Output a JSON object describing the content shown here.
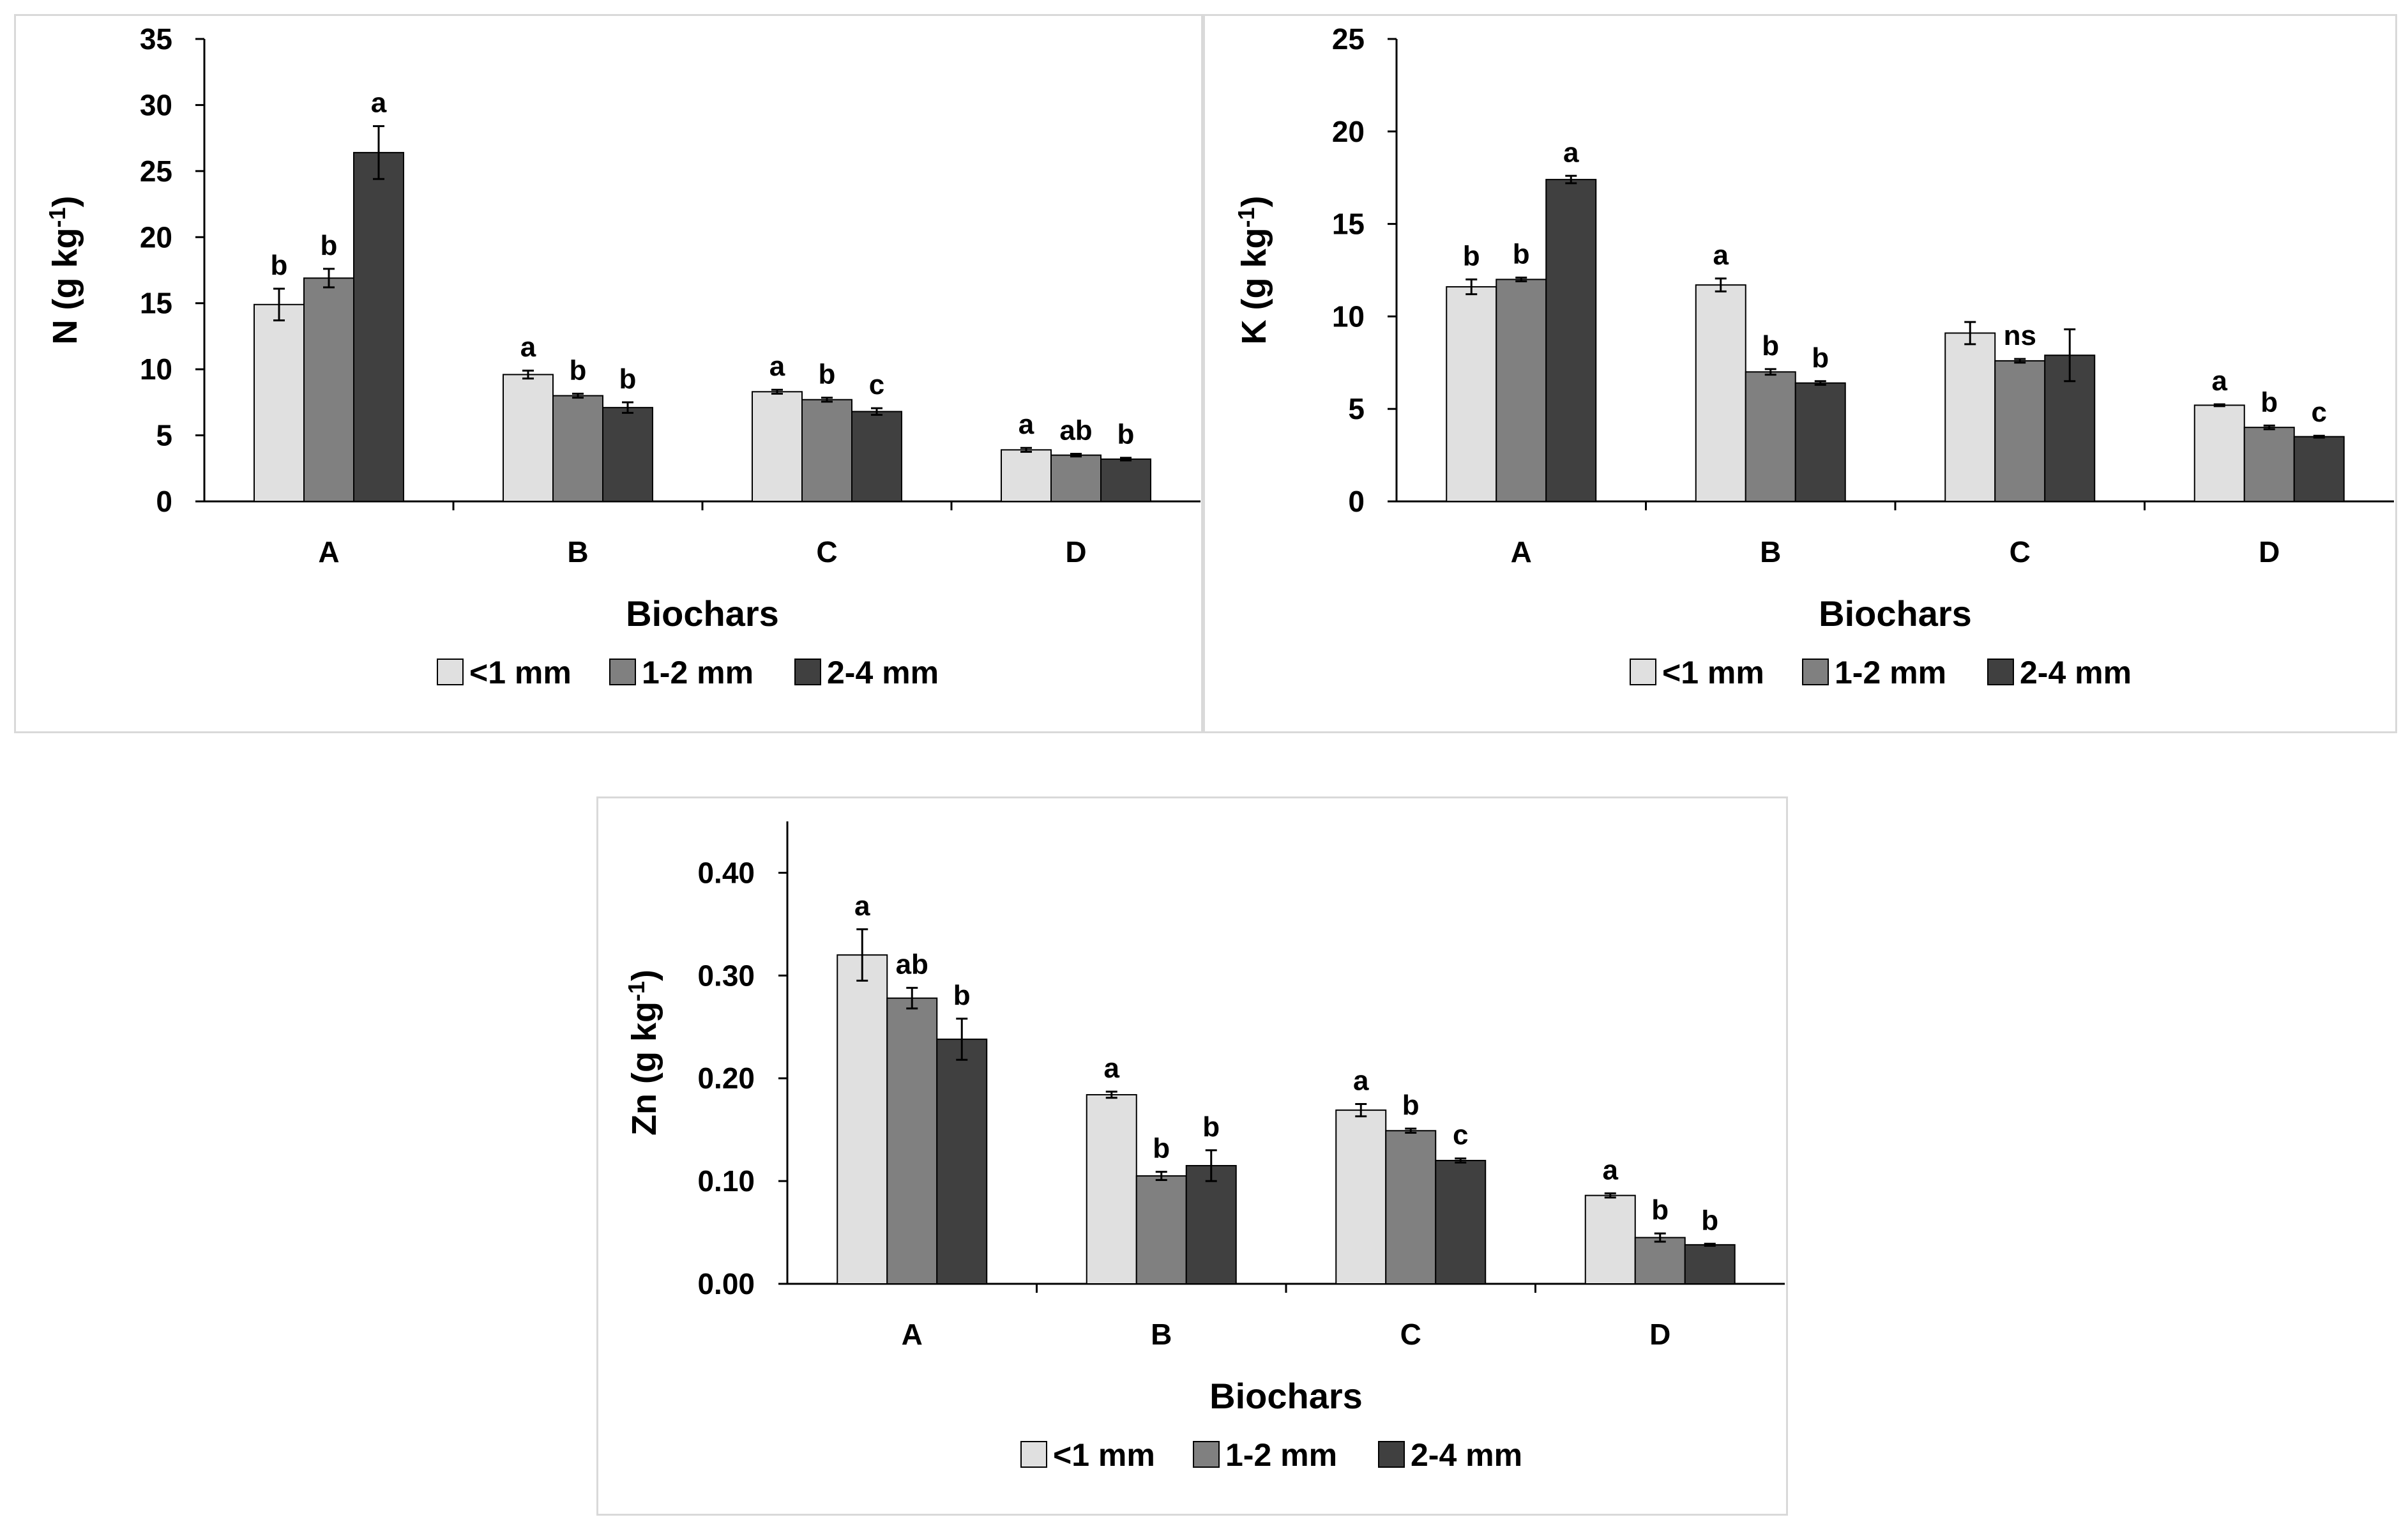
{
  "chart_data": [
    {
      "id": "n",
      "type": "bar",
      "ylabel": "N (g kg",
      "ylabel_unit_sup": "-1",
      "ylabel_close": ")",
      "xlabel": "Biochars",
      "categories": [
        "A",
        "B",
        "C",
        "D"
      ],
      "ylim": [
        0,
        35
      ],
      "yticks": [
        "0",
        "5",
        "10",
        "15",
        "20",
        "25",
        "30",
        "35"
      ],
      "ytick_values": [
        0,
        5,
        10,
        15,
        20,
        25,
        30,
        35
      ],
      "series": [
        {
          "name": "<1 mm",
          "color": "#e0e0e0",
          "values": [
            14.9,
            9.6,
            8.3,
            3.9
          ],
          "errors": [
            1.2,
            0.3,
            0.15,
            0.15
          ],
          "labels": [
            "b",
            "a",
            "a",
            "a"
          ]
        },
        {
          "name": "1-2 mm",
          "color": "#808080",
          "values": [
            16.9,
            8.0,
            7.7,
            3.5
          ],
          "errors": [
            0.7,
            0.15,
            0.15,
            0.1
          ],
          "labels": [
            "b",
            "b",
            "b",
            "ab"
          ]
        },
        {
          "name": "2-4 mm",
          "color": "#404040",
          "values": [
            26.4,
            7.1,
            6.8,
            3.2
          ],
          "errors": [
            2.0,
            0.4,
            0.25,
            0.1
          ],
          "labels": [
            "a",
            "b",
            "c",
            "b"
          ]
        }
      ],
      "legend": [
        "<1 mm",
        "1-2 mm",
        "2-4 mm"
      ]
    },
    {
      "id": "k",
      "type": "bar",
      "ylabel": "K (g kg",
      "ylabel_unit_sup": "-1",
      "ylabel_close": ")",
      "xlabel": "Biochars",
      "categories": [
        "A",
        "B",
        "C",
        "D"
      ],
      "ylim": [
        0,
        25
      ],
      "yticks": [
        "0",
        "5",
        "10",
        "15",
        "20",
        "25"
      ],
      "ytick_values": [
        0,
        5,
        10,
        15,
        20,
        25
      ],
      "series": [
        {
          "name": "<1 mm",
          "color": "#e0e0e0",
          "values": [
            11.6,
            11.7,
            9.1,
            5.2
          ],
          "errors": [
            0.4,
            0.35,
            0.6,
            0.05
          ],
          "labels": [
            "b",
            "a",
            "",
            "a"
          ]
        },
        {
          "name": "1-2 mm",
          "color": "#808080",
          "values": [
            12.0,
            7.0,
            7.6,
            4.0
          ],
          "errors": [
            0.1,
            0.15,
            0.1,
            0.1
          ],
          "labels": [
            "b",
            "b",
            "ns",
            "b"
          ]
        },
        {
          "name": "2-4 mm",
          "color": "#404040",
          "values": [
            17.4,
            6.4,
            7.9,
            3.5
          ],
          "errors": [
            0.2,
            0.1,
            1.4,
            0.05
          ],
          "labels": [
            "a",
            "b",
            "",
            "c"
          ]
        }
      ],
      "legend": [
        "<1 mm",
        "1-2 mm",
        "2-4 mm"
      ]
    },
    {
      "id": "zn",
      "type": "bar",
      "ylabel": "Zn (g kg",
      "ylabel_unit_sup": "-1",
      "ylabel_close": ")",
      "xlabel": "Biochars",
      "categories": [
        "A",
        "B",
        "C",
        "D"
      ],
      "ylim": [
        0,
        0.45
      ],
      "yticks": [
        "0.00",
        "0.10",
        "0.20",
        "0.30",
        "0.40"
      ],
      "ytick_values": [
        0,
        0.1,
        0.2,
        0.3,
        0.4
      ],
      "series": [
        {
          "name": "<1 mm",
          "color": "#e0e0e0",
          "values": [
            0.32,
            0.184,
            0.169,
            0.086
          ],
          "errors": [
            0.025,
            0.003,
            0.006,
            0.002
          ],
          "labels": [
            "a",
            "a",
            "a",
            "a"
          ]
        },
        {
          "name": "1-2 mm",
          "color": "#808080",
          "values": [
            0.278,
            0.105,
            0.149,
            0.045
          ],
          "errors": [
            0.01,
            0.004,
            0.002,
            0.004
          ],
          "labels": [
            "ab",
            "b",
            "b",
            "b"
          ]
        },
        {
          "name": "2-4 mm",
          "color": "#404040",
          "values": [
            0.238,
            0.115,
            0.12,
            0.038
          ],
          "errors": [
            0.02,
            0.015,
            0.002,
            0.001
          ],
          "labels": [
            "b",
            "b",
            "c",
            "b"
          ]
        }
      ],
      "legend": [
        "<1 mm",
        "1-2 mm",
        "2-4 mm"
      ]
    }
  ]
}
